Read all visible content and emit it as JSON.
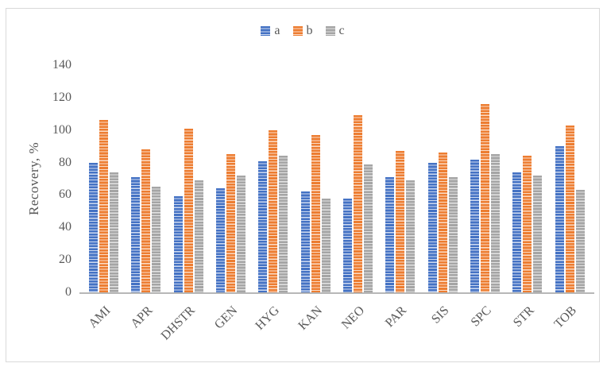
{
  "chart_data": {
    "type": "bar",
    "title": "",
    "xlabel": "",
    "ylabel": "Recovery, %",
    "ylim": [
      0,
      140
    ],
    "yticks": [
      0,
      20,
      40,
      60,
      80,
      100,
      120,
      140
    ],
    "grid": false,
    "legend_position": "top-center",
    "bar_fill_pattern": "horizontal-stripes",
    "categories": [
      "AMI",
      "APR",
      "DHSTR",
      "GEN",
      "HYG",
      "KAN",
      "NEO",
      "PAR",
      "SIS",
      "SPC",
      "STR",
      "TOB"
    ],
    "series": [
      {
        "name": "a",
        "color": "#4472C4",
        "stripe_light": "#cfdbf1",
        "values": [
          80,
          71,
          59,
          64,
          81,
          62,
          58,
          71,
          80,
          82,
          74,
          90
        ]
      },
      {
        "name": "b",
        "color": "#ED7D31",
        "stripe_light": "#fbdcc6",
        "values": [
          106,
          88,
          101,
          85,
          100,
          97,
          109,
          87,
          86,
          116,
          84,
          103
        ]
      },
      {
        "name": "c",
        "color": "#A5A5A5",
        "stripe_light": "#e4e4e4",
        "values": [
          74,
          65,
          69,
          72,
          84,
          58,
          79,
          69,
          71,
          85,
          72,
          63
        ]
      }
    ]
  },
  "style": {
    "text_color": "#595959",
    "axis_line_color": "#b7b7b7",
    "frame_border_color": "#d9d9d9",
    "background": "#ffffff"
  }
}
